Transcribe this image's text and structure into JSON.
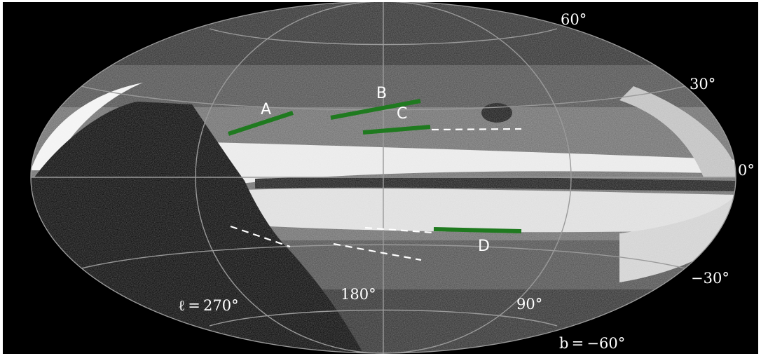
{
  "figure": {
    "projection": "Aitoff all-sky, galactic coordinates",
    "colors": {
      "background": "#000000",
      "grid": "#9a9a9a",
      "segment": "#1f7a1f",
      "dashed": "#ffffff",
      "bright_band": "#ffffff",
      "sky": "#5a5a5a"
    },
    "latitude_labels": [
      "60°",
      "30°",
      "0°",
      "−30°",
      "b = −60°"
    ],
    "longitude_labels": [
      "ℓ = 270°",
      "180°",
      "90°"
    ],
    "segments": [
      {
        "label": "A"
      },
      {
        "label": "B"
      },
      {
        "label": "C"
      },
      {
        "label": "D"
      }
    ]
  }
}
